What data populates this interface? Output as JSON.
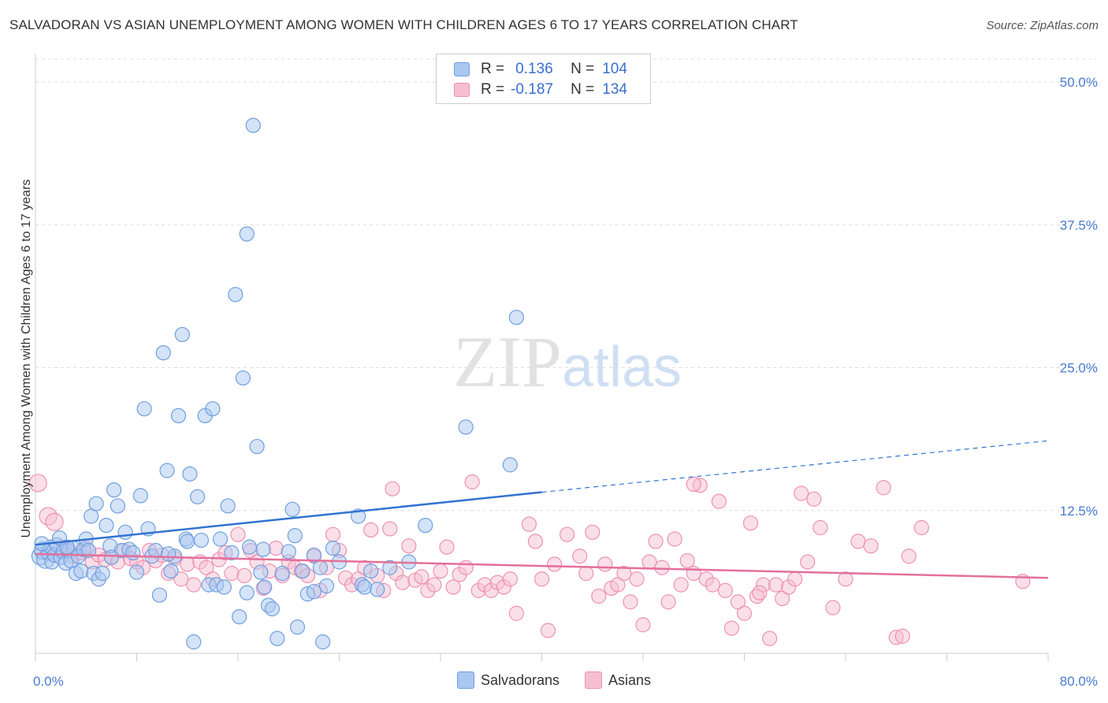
{
  "title": "SALVADORAN VS ASIAN UNEMPLOYMENT AMONG WOMEN WITH CHILDREN AGES 6 TO 17 YEARS CORRELATION CHART",
  "source": "Source: ZipAtlas.com",
  "watermark": "ZIPatlas",
  "legend": {
    "rows": [
      {
        "r_label": "R =",
        "r_value": "0.136",
        "n_label": "N =",
        "n_value": "104"
      },
      {
        "r_label": "R =",
        "r_value": "-0.187",
        "n_label": "N =",
        "n_value": "134"
      }
    ]
  },
  "bottom_legend": [
    "Salvadorans",
    "Asians"
  ],
  "colors": {
    "salvadoran_fill": "#a9c7ef",
    "salvadoran_stroke": "#6f9fe0",
    "salvadoran_line": "#3273d1",
    "asian_fill": "#f6bfd1",
    "asian_stroke": "#ee91b1",
    "asian_line": "#e3709a",
    "tick_text": "#4a7bd0",
    "grid": "#dddddd"
  },
  "chart_data": {
    "type": "scatter",
    "title": "SALVADORAN VS ASIAN UNEMPLOYMENT AMONG WOMEN WITH CHILDREN AGES 6 TO 17 YEARS CORRELATION CHART",
    "xlabel": "",
    "ylabel": "Unemployment Among Women with Children Ages 6 to 17 years",
    "xlim": [
      0,
      80
    ],
    "ylim": [
      0,
      52
    ],
    "x_tick_labels": [
      "0.0%",
      "80.0%"
    ],
    "y_ticks": [
      12.5,
      25.0,
      37.5,
      50.0
    ],
    "y_tick_labels": [
      "12.5%",
      "25.0%",
      "37.5%",
      "50.0%"
    ],
    "grid": true,
    "series": [
      {
        "name": "Salvadorans",
        "r": 0.136,
        "n": 104,
        "trend": {
          "x0": 0,
          "y0": 9.5,
          "x1": 40,
          "y1": 14.1,
          "dashed_to_x": 80,
          "dashed_to_y": 18.6
        },
        "points": [
          [
            0.4,
            8.5
          ],
          [
            0.6,
            9.0
          ],
          [
            0.8,
            8.2
          ],
          [
            1.0,
            8.8
          ],
          [
            1.2,
            9.3
          ],
          [
            1.3,
            8.0
          ],
          [
            1.5,
            8.6
          ],
          [
            1.7,
            9.5
          ],
          [
            1.9,
            10.1
          ],
          [
            2.0,
            8.4
          ],
          [
            2.2,
            8.9
          ],
          [
            2.4,
            7.9
          ],
          [
            2.6,
            9.0
          ],
          [
            2.8,
            8.1
          ],
          [
            3.0,
            9.2
          ],
          [
            3.2,
            7.0
          ],
          [
            3.4,
            8.5
          ],
          [
            3.6,
            7.2
          ],
          [
            3.8,
            9.1
          ],
          [
            4.0,
            10.0
          ],
          [
            4.2,
            9.0
          ],
          [
            4.4,
            12.0
          ],
          [
            4.6,
            7.0
          ],
          [
            4.8,
            13.1
          ],
          [
            5.0,
            6.5
          ],
          [
            5.3,
            7.0
          ],
          [
            5.6,
            11.2
          ],
          [
            5.9,
            9.4
          ],
          [
            6.2,
            14.3
          ],
          [
            6.5,
            12.9
          ],
          [
            6.8,
            9.0
          ],
          [
            7.1,
            10.6
          ],
          [
            7.4,
            9.1
          ],
          [
            7.7,
            8.8
          ],
          [
            8.0,
            7.1
          ],
          [
            8.3,
            13.8
          ],
          [
            8.6,
            21.4
          ],
          [
            8.9,
            10.9
          ],
          [
            9.2,
            8.5
          ],
          [
            9.5,
            9.0
          ],
          [
            9.8,
            5.1
          ],
          [
            10.1,
            26.3
          ],
          [
            10.4,
            16.0
          ],
          [
            10.7,
            7.2
          ],
          [
            11.0,
            8.5
          ],
          [
            11.3,
            20.8
          ],
          [
            11.6,
            27.9
          ],
          [
            11.9,
            10.0
          ],
          [
            12.2,
            15.7
          ],
          [
            12.5,
            1.0
          ],
          [
            12.8,
            13.7
          ],
          [
            13.1,
            9.9
          ],
          [
            13.4,
            20.8
          ],
          [
            13.7,
            6.0
          ],
          [
            14.0,
            21.4
          ],
          [
            14.3,
            6.0
          ],
          [
            14.6,
            10.0
          ],
          [
            14.9,
            5.8
          ],
          [
            15.2,
            12.9
          ],
          [
            15.5,
            8.8
          ],
          [
            15.8,
            31.4
          ],
          [
            16.1,
            3.2
          ],
          [
            16.4,
            24.1
          ],
          [
            16.7,
            36.7
          ],
          [
            16.7,
            5.3
          ],
          [
            16.9,
            9.3
          ],
          [
            17.2,
            46.2
          ],
          [
            17.5,
            18.1
          ],
          [
            17.8,
            7.1
          ],
          [
            18.1,
            5.8
          ],
          [
            18.4,
            4.2
          ],
          [
            18.7,
            3.9
          ],
          [
            19.1,
            1.3
          ],
          [
            19.5,
            7.0
          ],
          [
            20.0,
            8.9
          ],
          [
            20.3,
            12.6
          ],
          [
            20.5,
            10.3
          ],
          [
            20.7,
            2.3
          ],
          [
            21.1,
            7.2
          ],
          [
            21.5,
            5.2
          ],
          [
            22.0,
            8.6
          ],
          [
            22.5,
            7.5
          ],
          [
            22.7,
            1.0
          ],
          [
            23.0,
            5.9
          ],
          [
            23.5,
            9.2
          ],
          [
            24.0,
            8.0
          ],
          [
            25.5,
            12.0
          ],
          [
            25.8,
            6.0
          ],
          [
            26.0,
            5.8
          ],
          [
            27.0,
            5.6
          ],
          [
            28.0,
            7.5
          ],
          [
            29.5,
            8.0
          ],
          [
            30.8,
            11.2
          ],
          [
            34.0,
            19.8
          ],
          [
            37.5,
            16.5
          ],
          [
            38.0,
            29.4
          ],
          [
            0.5,
            9.6
          ],
          [
            2.5,
            9.3
          ],
          [
            6.0,
            8.4
          ],
          [
            10.5,
            8.7
          ],
          [
            12.0,
            9.8
          ],
          [
            18.0,
            9.1
          ],
          [
            22.0,
            5.4
          ],
          [
            26.5,
            7.2
          ]
        ]
      },
      {
        "name": "Asians",
        "r": -0.187,
        "n": 134,
        "trend": {
          "x0": 0,
          "y0": 8.7,
          "x1": 80,
          "y1": 6.6
        },
        "points": [
          [
            0.2,
            14.9
          ],
          [
            1.0,
            12.0
          ],
          [
            1.5,
            11.5
          ],
          [
            2.0,
            9.3
          ],
          [
            2.5,
            9.0
          ],
          [
            3.0,
            8.5
          ],
          [
            3.5,
            8.8
          ],
          [
            4.0,
            9.2
          ],
          [
            4.5,
            8.0
          ],
          [
            5.0,
            8.6
          ],
          [
            5.5,
            8.2
          ],
          [
            6.0,
            8.4
          ],
          [
            6.5,
            8.0
          ],
          [
            7.0,
            9.0
          ],
          [
            7.5,
            8.3
          ],
          [
            8.0,
            8.0
          ],
          [
            8.5,
            7.5
          ],
          [
            9.0,
            9.0
          ],
          [
            9.5,
            8.1
          ],
          [
            10.0,
            8.6
          ],
          [
            10.5,
            7.0
          ],
          [
            11.0,
            8.3
          ],
          [
            11.5,
            6.5
          ],
          [
            12.0,
            7.8
          ],
          [
            12.5,
            6.0
          ],
          [
            13.0,
            8.0
          ],
          [
            13.5,
            7.5
          ],
          [
            14.0,
            6.5
          ],
          [
            14.5,
            8.2
          ],
          [
            15.0,
            8.8
          ],
          [
            15.5,
            7.0
          ],
          [
            16.0,
            10.4
          ],
          [
            16.5,
            6.8
          ],
          [
            17.0,
            9.0
          ],
          [
            17.5,
            8.0
          ],
          [
            18.0,
            5.7
          ],
          [
            18.5,
            7.2
          ],
          [
            19.0,
            9.2
          ],
          [
            19.5,
            6.8
          ],
          [
            20.0,
            8.0
          ],
          [
            20.5,
            7.5
          ],
          [
            21.0,
            7.2
          ],
          [
            21.5,
            6.8
          ],
          [
            22.0,
            8.5
          ],
          [
            22.5,
            5.5
          ],
          [
            23.0,
            7.5
          ],
          [
            23.5,
            10.4
          ],
          [
            24.0,
            9.0
          ],
          [
            24.5,
            6.6
          ],
          [
            25.0,
            6.0
          ],
          [
            25.5,
            6.5
          ],
          [
            26.0,
            7.5
          ],
          [
            26.5,
            10.8
          ],
          [
            27.0,
            6.8
          ],
          [
            27.5,
            5.5
          ],
          [
            28.0,
            10.9
          ],
          [
            28.5,
            7.0
          ],
          [
            29.0,
            6.2
          ],
          [
            29.5,
            9.4
          ],
          [
            30.0,
            6.4
          ],
          [
            30.5,
            6.7
          ],
          [
            31.0,
            5.5
          ],
          [
            31.5,
            6.0
          ],
          [
            32.0,
            7.2
          ],
          [
            32.5,
            9.3
          ],
          [
            33.0,
            5.8
          ],
          [
            33.5,
            6.9
          ],
          [
            34.0,
            7.5
          ],
          [
            34.5,
            15.0
          ],
          [
            35.0,
            5.5
          ],
          [
            35.5,
            6.0
          ],
          [
            36.0,
            5.5
          ],
          [
            36.5,
            6.2
          ],
          [
            37.0,
            5.8
          ],
          [
            37.5,
            6.5
          ],
          [
            38.0,
            3.5
          ],
          [
            39.0,
            11.3
          ],
          [
            39.5,
            9.8
          ],
          [
            40.0,
            6.5
          ],
          [
            40.5,
            2.0
          ],
          [
            41.0,
            7.8
          ],
          [
            42.0,
            10.4
          ],
          [
            43.0,
            8.5
          ],
          [
            43.5,
            7.0
          ],
          [
            44.0,
            10.6
          ],
          [
            44.5,
            5.0
          ],
          [
            45.0,
            7.8
          ],
          [
            45.5,
            5.7
          ],
          [
            46.0,
            6.0
          ],
          [
            46.5,
            7.0
          ],
          [
            47.0,
            4.5
          ],
          [
            47.5,
            6.5
          ],
          [
            48.0,
            2.5
          ],
          [
            48.5,
            8.0
          ],
          [
            49.0,
            9.8
          ],
          [
            49.5,
            7.5
          ],
          [
            50.0,
            4.5
          ],
          [
            50.5,
            10.0
          ],
          [
            51.0,
            6.0
          ],
          [
            51.5,
            8.1
          ],
          [
            52.0,
            7.0
          ],
          [
            52.5,
            14.7
          ],
          [
            53.0,
            6.5
          ],
          [
            53.5,
            6.0
          ],
          [
            54.0,
            13.3
          ],
          [
            54.5,
            5.5
          ],
          [
            55.0,
            2.2
          ],
          [
            55.5,
            4.5
          ],
          [
            56.0,
            3.5
          ],
          [
            56.5,
            11.4
          ],
          [
            57.0,
            5.0
          ],
          [
            57.5,
            6.0
          ],
          [
            58.0,
            1.3
          ],
          [
            58.5,
            6.0
          ],
          [
            59.0,
            4.8
          ],
          [
            59.5,
            5.8
          ],
          [
            60.0,
            6.5
          ],
          [
            60.5,
            14.0
          ],
          [
            61.0,
            8.0
          ],
          [
            61.5,
            13.5
          ],
          [
            62.0,
            11.0
          ],
          [
            63.0,
            4.0
          ],
          [
            64.0,
            6.5
          ],
          [
            65.0,
            9.8
          ],
          [
            66.0,
            9.4
          ],
          [
            67.0,
            14.5
          ],
          [
            68.0,
            1.4
          ],
          [
            68.5,
            1.5
          ],
          [
            69.0,
            8.5
          ],
          [
            70.0,
            11.0
          ],
          [
            78.0,
            6.3
          ],
          [
            57.2,
            5.3
          ],
          [
            52.0,
            14.8
          ],
          [
            28.2,
            14.4
          ]
        ]
      }
    ]
  }
}
